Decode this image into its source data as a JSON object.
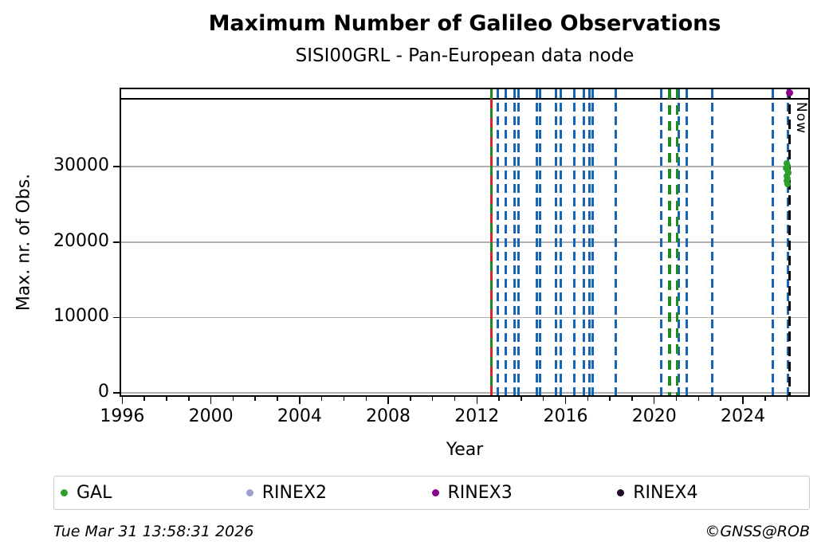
{
  "header": {
    "title": "Maximum Number of Galileo Observations",
    "subtitle": "SISI00GRL - Pan-European data node"
  },
  "footer": {
    "generated": "Tue Mar 31 13:58:31 2026",
    "credit": "©GNSS@ROB"
  },
  "legend": {
    "items": [
      {
        "label": "GAL",
        "color": "#2ca02c"
      },
      {
        "label": "RINEX2",
        "color": "#9e9ed0"
      },
      {
        "label": "RINEX3",
        "color": "#8b008b"
      },
      {
        "label": "RINEX4",
        "color": "#200a28"
      }
    ]
  },
  "chart_data": {
    "type": "scatter",
    "title": "Maximum Number of Galileo Observations",
    "subtitle": "SISI00GRL - Pan-European data node",
    "xlabel": "Year",
    "ylabel": "Max. nr. of Obs.",
    "xlim": [
      1995.95,
      2026.95
    ],
    "ylim": [
      -315,
      40280
    ],
    "x_major_ticks": [
      1996,
      2000,
      2004,
      2008,
      2012,
      2016,
      2020,
      2024
    ],
    "y_ticks": [
      0,
      10000,
      20000,
      30000
    ],
    "grid": "horizontal",
    "grid_color": "#b0b0b0",
    "max_obs_line": {
      "value": 39000,
      "color": "#000000"
    },
    "now_marker": {
      "year": 2026.12,
      "label": "Now"
    },
    "event_lines": [
      {
        "name": "data-event-line",
        "color": "#1565b4",
        "width": 3,
        "dash": [
          11,
          6
        ],
        "phase": 0,
        "years": [
          2012.94,
          2013.3,
          2013.69,
          2013.89,
          2014.71,
          2014.86,
          2015.56,
          2015.79,
          2016.38,
          2016.81,
          2017.07,
          2017.23,
          2018.25,
          2020.3,
          2021.09,
          2021.48,
          2022.6,
          2025.36,
          2026.05
        ]
      },
      {
        "name": "gal-start-line-green",
        "color": "#1f8b1f",
        "width": 3.5,
        "dash": [
          12,
          12
        ],
        "phase": 0,
        "years": [
          2012.65
        ]
      },
      {
        "name": "gal-start-line-red",
        "color": "#d62728",
        "width": 3.5,
        "dash": [
          12,
          12
        ],
        "phase": 12,
        "years": [
          2012.65
        ]
      },
      {
        "name": "receiver-event-line",
        "color": "#1f8b1f",
        "width": 3.5,
        "dash": [
          12,
          8
        ],
        "phase": 0,
        "years": [
          2020.69,
          2021.04
        ]
      },
      {
        "name": "now-line",
        "color": "#000000",
        "width": 3,
        "dash": [
          12,
          7
        ],
        "phase": 0,
        "years": [
          2026.12
        ]
      }
    ],
    "series": [
      {
        "name": "GAL",
        "marker_color": "#2ca02c",
        "marker_size": 8,
        "points": [
          [
            2025.99,
            30450
          ],
          [
            2026.03,
            30150
          ],
          [
            2025.96,
            29850
          ],
          [
            2026.01,
            29500
          ],
          [
            2026.05,
            29150
          ],
          [
            2025.97,
            28800
          ],
          [
            2026.02,
            28450
          ],
          [
            2025.99,
            28100
          ],
          [
            2026.03,
            27750
          ]
        ]
      },
      {
        "name": "RINEX2",
        "marker_color": "#9e9ed0",
        "marker_size": 9,
        "points": []
      },
      {
        "name": "RINEX3",
        "marker_color": "#8b008b",
        "marker_size": 9,
        "points": [
          [
            2026.1,
            39800
          ]
        ]
      },
      {
        "name": "RINEX4",
        "marker_color": "#200a28",
        "marker_size": 9,
        "points": []
      }
    ]
  }
}
